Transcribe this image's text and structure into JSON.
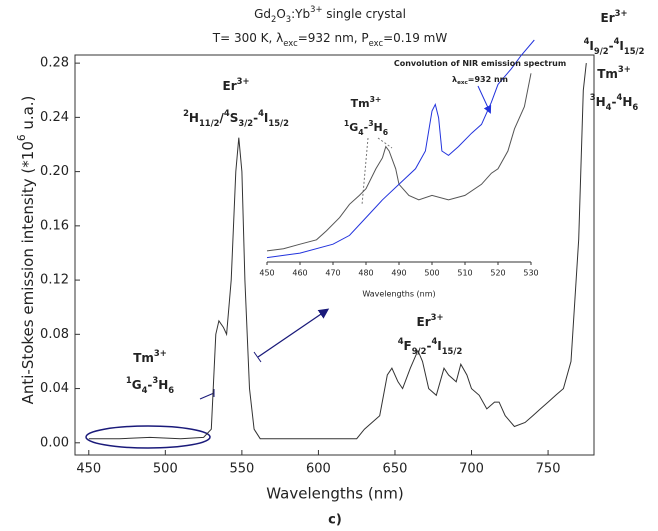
{
  "chart_data": [
    {
      "type": "line",
      "title": [
        [
          {
            "text": "Gd"
          },
          {
            "text": "2",
            "pos": "sub"
          },
          {
            "text": "O"
          },
          {
            "text": "3",
            "pos": "sub"
          },
          {
            "text": ":Yb"
          },
          {
            "text": "3+",
            "pos": "sup"
          },
          {
            "text": " single crystal"
          }
        ],
        [
          {
            "text": "T= 300 K, λ"
          },
          {
            "text": "exc",
            "pos": "sub"
          },
          {
            "text": "=932 nm, P"
          },
          {
            "text": "exc",
            "pos": "sub"
          },
          {
            "text": "=0.19 mW"
          }
        ]
      ],
      "x_label": "Wavelengths (nm)",
      "y_label": [
        {
          "text": "Anti-Stokes emission intensity (*10"
        },
        {
          "text": "6",
          "pos": "sup"
        },
        {
          "text": " u.a.)"
        }
      ],
      "caption": "c)",
      "xlim": [
        441,
        780
      ],
      "xticks": [
        450,
        500,
        550,
        600,
        650,
        700,
        750
      ],
      "ylim": [
        -0.009,
        0.286
      ],
      "yticks": [
        {
          "value": 0,
          "label": "0.00"
        },
        {
          "value": 0.04,
          "label": "0.04"
        },
        {
          "value": 0.08,
          "label": "0.08"
        },
        {
          "value": 0.12,
          "label": "0.12"
        },
        {
          "value": 0.16,
          "label": "0.16"
        },
        {
          "value": 0.2,
          "label": "0.20"
        },
        {
          "value": 0.24,
          "label": "0.24"
        },
        {
          "value": 0.28,
          "label": "0.28"
        }
      ],
      "grid": false,
      "x": [
        450,
        470,
        490,
        510,
        525,
        530,
        533,
        535,
        538,
        540,
        543,
        546,
        548,
        550,
        552,
        555,
        558,
        562,
        600,
        625,
        630,
        640,
        645,
        648,
        652,
        655,
        660,
        665,
        668,
        672,
        677,
        682,
        685,
        690,
        693,
        697,
        700,
        705,
        710,
        715,
        718,
        722,
        728,
        735,
        740,
        745,
        750,
        755,
        760,
        765,
        770,
        773,
        775
      ],
      "series": [
        {
          "color": "#333333",
          "values": [
            0.003,
            0.003,
            0.004,
            0.003,
            0.004,
            0.01,
            0.08,
            0.09,
            0.085,
            0.08,
            0.12,
            0.2,
            0.225,
            0.2,
            0.12,
            0.04,
            0.01,
            0.003,
            0.003,
            0.003,
            0.01,
            0.02,
            0.05,
            0.055,
            0.045,
            0.04,
            0.055,
            0.068,
            0.06,
            0.04,
            0.035,
            0.055,
            0.05,
            0.045,
            0.058,
            0.05,
            0.04,
            0.035,
            0.025,
            0.03,
            0.03,
            0.02,
            0.012,
            0.015,
            0.02,
            0.025,
            0.03,
            0.035,
            0.04,
            0.06,
            0.15,
            0.26,
            0.28
          ]
        }
      ],
      "annotations": [
        {
          "color": "#22dd22",
          "lines": [
            [
              {
                "text": "Er"
              },
              {
                "text": "3+",
                "pos": "sup"
              }
            ],
            [
              {
                "text": "2",
                "pos": "sup"
              },
              {
                "text": "H"
              },
              {
                "text": "11/2",
                "pos": "sub"
              },
              {
                "text": "/"
              },
              {
                "text": "4",
                "pos": "sup"
              },
              {
                "text": "S"
              },
              {
                "text": "3/2",
                "pos": "sub"
              },
              {
                "text": "-"
              },
              {
                "text": "4",
                "pos": "sup"
              },
              {
                "text": "I"
              },
              {
                "text": "15/2",
                "pos": "sub"
              }
            ]
          ]
        },
        {
          "color": "#ee2222",
          "lines": [
            [
              {
                "text": "Er"
              },
              {
                "text": "3+",
                "pos": "sup"
              }
            ],
            [
              {
                "text": "4",
                "pos": "sup"
              },
              {
                "text": "F"
              },
              {
                "text": "9/2",
                "pos": "sub"
              },
              {
                "text": "-"
              },
              {
                "text": "4",
                "pos": "sup"
              },
              {
                "text": "I"
              },
              {
                "text": "15/2",
                "pos": "sub"
              }
            ]
          ]
        },
        {
          "color": "#ee2222",
          "lines": [
            [
              {
                "text": "Er"
              },
              {
                "text": "3+",
                "pos": "sup"
              }
            ],
            [
              {
                "text": "4",
                "pos": "sup"
              },
              {
                "text": "I"
              },
              {
                "text": "9/2",
                "pos": "sub"
              },
              {
                "text": "-"
              },
              {
                "text": "4",
                "pos": "sup"
              },
              {
                "text": "I"
              },
              {
                "text": "15/2",
                "pos": "sub"
              }
            ],
            [
              {
                "text": "Tm"
              },
              {
                "text": "3+",
                "pos": "sup"
              }
            ],
            [
              {
                "text": "3",
                "pos": "sup"
              },
              {
                "text": "H"
              },
              {
                "text": "4",
                "pos": "sub"
              },
              {
                "text": "-"
              },
              {
                "text": "4",
                "pos": "sup"
              },
              {
                "text": "H"
              },
              {
                "text": "6",
                "pos": "sub"
              }
            ]
          ]
        },
        {
          "color": "#1a1a7a",
          "lines": [
            [
              {
                "text": "Tm"
              },
              {
                "text": "3+",
                "pos": "sup"
              }
            ],
            [
              {
                "text": "1",
                "pos": "sup"
              },
              {
                "text": "G"
              },
              {
                "text": "4",
                "pos": "sub"
              },
              {
                "text": "-"
              },
              {
                "text": "3",
                "pos": "sup"
              },
              {
                "text": "H"
              },
              {
                "text": "6",
                "pos": "sub"
              }
            ]
          ]
        }
      ]
    },
    {
      "type": "line",
      "x_label": "Wavelengths (nm)",
      "xlim": [
        450,
        530
      ],
      "xticks": [
        450,
        460,
        470,
        480,
        490,
        500,
        510,
        520,
        530
      ],
      "ylim": [
        0,
        1
      ],
      "series": [
        {
          "color": "#555555",
          "x": [
            450,
            455,
            460,
            465,
            468,
            472,
            475,
            478,
            480,
            483,
            485,
            486,
            487,
            489,
            490,
            493,
            496,
            500,
            505,
            510,
            515,
            518,
            520,
            523,
            525,
            528,
            530
          ],
          "values": [
            0.05,
            0.06,
            0.08,
            0.1,
            0.14,
            0.2,
            0.26,
            0.3,
            0.33,
            0.42,
            0.47,
            0.52,
            0.5,
            0.42,
            0.35,
            0.3,
            0.28,
            0.3,
            0.28,
            0.3,
            0.35,
            0.4,
            0.42,
            0.5,
            0.6,
            0.7,
            0.85
          ]
        },
        {
          "color": "#2233dd",
          "x": [
            450,
            460,
            470,
            475,
            480,
            485,
            490,
            495,
            498,
            500,
            501,
            502,
            503,
            505,
            508,
            512,
            515,
            518,
            520,
            524,
            527,
            531
          ],
          "values": [
            0.02,
            0.04,
            0.08,
            0.12,
            0.2,
            0.28,
            0.35,
            0.42,
            0.5,
            0.68,
            0.71,
            0.65,
            0.5,
            0.48,
            0.52,
            0.58,
            0.62,
            0.72,
            0.8,
            0.87,
            0.93,
            1.0
          ]
        }
      ],
      "annotations": [
        {
          "color": "#1a1a7a",
          "lines": [
            [
              {
                "text": "Tm"
              },
              {
                "text": "3+",
                "pos": "sup"
              }
            ],
            [
              {
                "text": "1",
                "pos": "sup"
              },
              {
                "text": "G"
              },
              {
                "text": "4",
                "pos": "sub"
              },
              {
                "text": "-"
              },
              {
                "text": "3",
                "pos": "sup"
              },
              {
                "text": "H"
              },
              {
                "text": "6",
                "pos": "sub"
              }
            ]
          ]
        },
        {
          "color": "#2233dd",
          "lines": [
            [
              {
                "text": "Convolution of NIR emission spectrum"
              }
            ],
            [
              {
                "text": "λ"
              },
              {
                "text": "exc",
                "pos": "sub"
              },
              {
                "text": "=932 nm"
              }
            ]
          ]
        }
      ]
    }
  ]
}
